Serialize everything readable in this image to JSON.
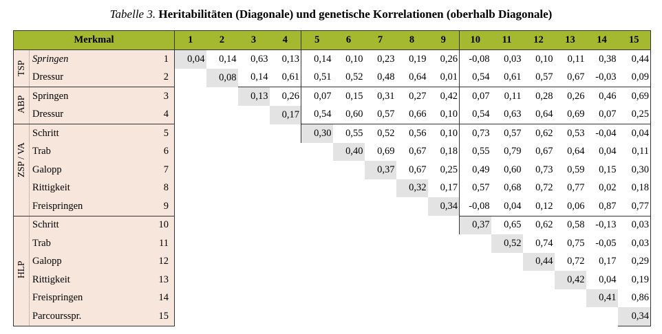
{
  "caption": {
    "label": "Tabelle 3.",
    "text": "Heritabilitäten (Diagonale) und genetische Korrelationen (oberhalb Diagonale)"
  },
  "header": {
    "merkmal": "Merkmal",
    "columns": [
      "1",
      "2",
      "3",
      "4",
      "5",
      "6",
      "7",
      "8",
      "9",
      "10",
      "11",
      "12",
      "13",
      "14",
      "15"
    ]
  },
  "colors": {
    "header_bg": "#a4b830",
    "label_bg": "#f7e6dc",
    "diagonal_bg": "#e3e3e3"
  },
  "groups": [
    {
      "name": "TSP",
      "rows": [
        {
          "trait": "Springen",
          "italic": true,
          "num": "1",
          "values": [
            "0,04",
            "0,14",
            "0,63",
            "0,13",
            "0,14",
            "0,10",
            "0,23",
            "0,19",
            "0,26",
            "-0,08",
            "0,03",
            "0,10",
            "0,11",
            "0,38",
            "0,44"
          ]
        },
        {
          "trait": "Dressur",
          "num": "2",
          "values": [
            "",
            "0,08",
            "0,14",
            "0,61",
            "0,51",
            "0,52",
            "0,48",
            "0,64",
            "0,01",
            "0,54",
            "0,61",
            "0,57",
            "0,67",
            "-0,03",
            "0,09"
          ]
        }
      ]
    },
    {
      "name": "ABP",
      "rows": [
        {
          "trait": "Springen",
          "num": "3",
          "values": [
            "",
            "",
            "0,13",
            "0,26",
            "0,07",
            "0,15",
            "0,31",
            "0,27",
            "0,42",
            "0,07",
            "0,11",
            "0,28",
            "0,26",
            "0,46",
            "0,69"
          ]
        },
        {
          "trait": "Dressur",
          "num": "4",
          "values": [
            "",
            "",
            "",
            "0,17",
            "0,54",
            "0,60",
            "0,57",
            "0,66",
            "0,10",
            "0,54",
            "0,63",
            "0,64",
            "0,69",
            "0,07",
            "0,25"
          ]
        }
      ]
    },
    {
      "name": "ZSP / VA",
      "rows": [
        {
          "trait": "Schritt",
          "num": "5",
          "values": [
            "",
            "",
            "",
            "",
            "0,30",
            "0,55",
            "0,52",
            "0,56",
            "0,10",
            "0,73",
            "0,57",
            "0,62",
            "0,53",
            "-0,04",
            "0,04"
          ]
        },
        {
          "trait": "Trab",
          "num": "6",
          "values": [
            "",
            "",
            "",
            "",
            "",
            "0,40",
            "0,69",
            "0,67",
            "0,18",
            "0,55",
            "0,79",
            "0,67",
            "0,64",
            "0,04",
            "0,11"
          ]
        },
        {
          "trait": "Galopp",
          "num": "7",
          "values": [
            "",
            "",
            "",
            "",
            "",
            "",
            "0,37",
            "0,67",
            "0,25",
            "0,49",
            "0,60",
            "0,73",
            "0,59",
            "0,15",
            "0,30"
          ]
        },
        {
          "trait": "Rittigkeit",
          "num": "8",
          "values": [
            "",
            "",
            "",
            "",
            "",
            "",
            "",
            "0,32",
            "0,17",
            "0,57",
            "0,68",
            "0,72",
            "0,77",
            "0,02",
            "0,18"
          ]
        },
        {
          "trait": "Freispringen",
          "num": "9",
          "values": [
            "",
            "",
            "",
            "",
            "",
            "",
            "",
            "",
            "0,34",
            "-0,08",
            "0,04",
            "0,12",
            "0,06",
            "0,87",
            "0,77"
          ]
        }
      ]
    },
    {
      "name": "HLP",
      "rows": [
        {
          "trait": "Schritt",
          "num": "10",
          "values": [
            "",
            "",
            "",
            "",
            "",
            "",
            "",
            "",
            "",
            "0,37",
            "0,65",
            "0,62",
            "0,58",
            "-0,13",
            "0,03"
          ]
        },
        {
          "trait": "Trab",
          "num": "11",
          "values": [
            "",
            "",
            "",
            "",
            "",
            "",
            "",
            "",
            "",
            "",
            "0,52",
            "0,74",
            "0,75",
            "-0,05",
            "0,03"
          ]
        },
        {
          "trait": "Galopp",
          "num": "12",
          "values": [
            "",
            "",
            "",
            "",
            "",
            "",
            "",
            "",
            "",
            "",
            "",
            "0,44",
            "0,72",
            "0,17",
            "0,29"
          ]
        },
        {
          "trait": "Rittigkeit",
          "num": "13",
          "values": [
            "",
            "",
            "",
            "",
            "",
            "",
            "",
            "",
            "",
            "",
            "",
            "",
            "0,42",
            "0,04",
            "0,19"
          ]
        },
        {
          "trait": "Freispringen",
          "num": "14",
          "values": [
            "",
            "",
            "",
            "",
            "",
            "",
            "",
            "",
            "",
            "",
            "",
            "",
            "",
            "0,41",
            "0,86"
          ]
        },
        {
          "trait": "Parcoursspr.",
          "num": "15",
          "values": [
            "",
            "",
            "",
            "",
            "",
            "",
            "",
            "",
            "",
            "",
            "",
            "",
            "",
            "",
            "0,34"
          ]
        }
      ]
    }
  ]
}
